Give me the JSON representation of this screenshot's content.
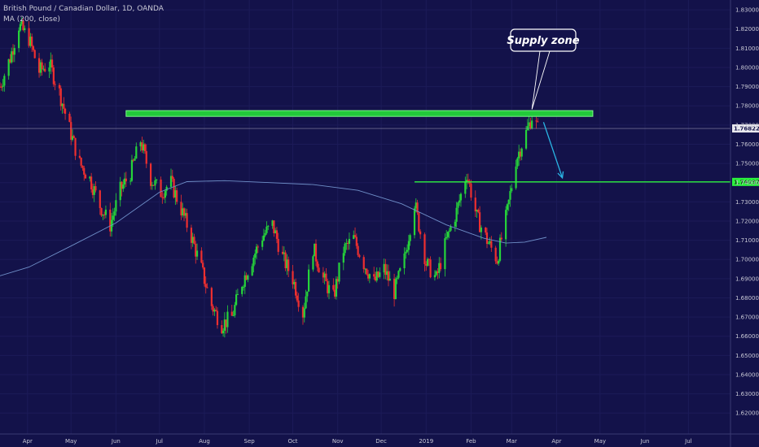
{
  "legend": {
    "symbol_line": "British Pound / Canadian Dollar, 1D, OANDA",
    "ma_line": "MA (200, close)"
  },
  "annotation": {
    "label": "Supply zone"
  },
  "colors": {
    "background": "#13124a",
    "up": "#26d43a",
    "down": "#ef2f2f",
    "ma": "#6f8fc8",
    "zone_fill": "#22c93a",
    "zone_border": "#7dfc8a",
    "support": "#2cf23e",
    "arrow": "#2ab7e6",
    "axis_text": "#c9c9d6"
  },
  "chart_data": {
    "type": "candlestick",
    "instrument": "British Pound / Canadian Dollar",
    "timeframe": "1D",
    "source": "OANDA",
    "y_axis": {
      "ylim": [
        1.615,
        1.833
      ],
      "ticks": [
        "1.62000",
        "1.63000",
        "1.64000",
        "1.65000",
        "1.66000",
        "1.67000",
        "1.68000",
        "1.69000",
        "1.70000",
        "1.71000",
        "1.72000",
        "1.73000",
        "1.74000",
        "1.75000",
        "1.76000",
        "1.77000",
        "1.78000",
        "1.79000",
        "1.80000",
        "1.81000",
        "1.82000",
        "1.83000"
      ]
    },
    "x_axis": {
      "labels": [
        "Apr",
        "May",
        "Jun",
        "Jul",
        "Aug",
        "Sep",
        "Oct",
        "Nov",
        "Dec",
        "2019",
        "Feb",
        "Mar",
        "Apr",
        "May",
        "Jun",
        "Jul"
      ],
      "label_dates": [
        "2018-04-01",
        "2018-05-01",
        "2018-06-01",
        "2018-07-01",
        "2018-08-01",
        "2018-09-01",
        "2018-10-01",
        "2018-11-01",
        "2018-12-01",
        "2019-01-01",
        "2019-02-01",
        "2019-03-01",
        "2019-04-01",
        "2019-05-01",
        "2019-06-01",
        "2019-07-01"
      ],
      "range": [
        "2018-03-13",
        "2019-07-30"
      ]
    },
    "last_price": "1.76822",
    "support_level": "1.74037",
    "supply_zone": {
      "low": 1.7745,
      "high": 1.7775,
      "from": "2018-06-08",
      "to": "2019-04-26"
    },
    "projection_arrow": {
      "from": {
        "date": "2019-03-23",
        "price": 1.7715
      },
      "to": {
        "date": "2019-04-05",
        "price": 1.7425
      }
    },
    "price_path": [
      {
        "date": "2018-03-13",
        "price": 1.79
      },
      {
        "date": "2018-03-20",
        "price": 1.805
      },
      {
        "date": "2018-03-26",
        "price": 1.822
      },
      {
        "date": "2018-04-02",
        "price": 1.815
      },
      {
        "date": "2018-04-09",
        "price": 1.798
      },
      {
        "date": "2018-04-16",
        "price": 1.802
      },
      {
        "date": "2018-04-23",
        "price": 1.787
      },
      {
        "date": "2018-04-30",
        "price": 1.768
      },
      {
        "date": "2018-05-07",
        "price": 1.75
      },
      {
        "date": "2018-05-14",
        "price": 1.742
      },
      {
        "date": "2018-05-21",
        "price": 1.728
      },
      {
        "date": "2018-05-28",
        "price": 1.718
      },
      {
        "date": "2018-06-04",
        "price": 1.736
      },
      {
        "date": "2018-06-11",
        "price": 1.745
      },
      {
        "date": "2018-06-18",
        "price": 1.762
      },
      {
        "date": "2018-06-25",
        "price": 1.742
      },
      {
        "date": "2018-07-02",
        "price": 1.735
      },
      {
        "date": "2018-07-09",
        "price": 1.74
      },
      {
        "date": "2018-07-16",
        "price": 1.726
      },
      {
        "date": "2018-07-23",
        "price": 1.712
      },
      {
        "date": "2018-07-30",
        "price": 1.695
      },
      {
        "date": "2018-08-06",
        "price": 1.676
      },
      {
        "date": "2018-08-13",
        "price": 1.666
      },
      {
        "date": "2018-08-20",
        "price": 1.67
      },
      {
        "date": "2018-08-27",
        "price": 1.688
      },
      {
        "date": "2018-09-03",
        "price": 1.7
      },
      {
        "date": "2018-09-10",
        "price": 1.712
      },
      {
        "date": "2018-09-17",
        "price": 1.718
      },
      {
        "date": "2018-09-24",
        "price": 1.701
      },
      {
        "date": "2018-10-01",
        "price": 1.69
      },
      {
        "date": "2018-10-08",
        "price": 1.672
      },
      {
        "date": "2018-10-15",
        "price": 1.706
      },
      {
        "date": "2018-10-22",
        "price": 1.69
      },
      {
        "date": "2018-10-29",
        "price": 1.68
      },
      {
        "date": "2018-11-05",
        "price": 1.705
      },
      {
        "date": "2018-11-12",
        "price": 1.711
      },
      {
        "date": "2018-11-19",
        "price": 1.698
      },
      {
        "date": "2018-11-26",
        "price": 1.688
      },
      {
        "date": "2018-12-03",
        "price": 1.695
      },
      {
        "date": "2018-12-10",
        "price": 1.683
      },
      {
        "date": "2018-12-17",
        "price": 1.7
      },
      {
        "date": "2018-12-24",
        "price": 1.73
      },
      {
        "date": "2019-01-01",
        "price": 1.698
      },
      {
        "date": "2019-01-08",
        "price": 1.69
      },
      {
        "date": "2019-01-15",
        "price": 1.71
      },
      {
        "date": "2019-01-22",
        "price": 1.725
      },
      {
        "date": "2019-01-29",
        "price": 1.745
      },
      {
        "date": "2019-02-05",
        "price": 1.722
      },
      {
        "date": "2019-02-12",
        "price": 1.71
      },
      {
        "date": "2019-02-19",
        "price": 1.7
      },
      {
        "date": "2019-02-26",
        "price": 1.725
      },
      {
        "date": "2019-03-04",
        "price": 1.752
      },
      {
        "date": "2019-03-11",
        "price": 1.766
      },
      {
        "date": "2019-03-15",
        "price": 1.7745
      },
      {
        "date": "2019-03-19",
        "price": 1.7682
      }
    ],
    "ma_path": [
      {
        "date": "2018-03-13",
        "price": 1.6915
      },
      {
        "date": "2018-04-02",
        "price": 1.696
      },
      {
        "date": "2018-05-01",
        "price": 1.707
      },
      {
        "date": "2018-06-01",
        "price": 1.719
      },
      {
        "date": "2018-07-01",
        "price": 1.735
      },
      {
        "date": "2018-07-20",
        "price": 1.7405
      },
      {
        "date": "2018-08-15",
        "price": 1.741
      },
      {
        "date": "2018-09-15",
        "price": 1.74
      },
      {
        "date": "2018-10-15",
        "price": 1.739
      },
      {
        "date": "2018-11-15",
        "price": 1.736
      },
      {
        "date": "2018-12-15",
        "price": 1.729
      },
      {
        "date": "2019-01-15",
        "price": 1.718
      },
      {
        "date": "2019-02-10",
        "price": 1.711
      },
      {
        "date": "2019-02-25",
        "price": 1.7085
      },
      {
        "date": "2019-03-10",
        "price": 1.709
      },
      {
        "date": "2019-03-25",
        "price": 1.7115
      }
    ]
  }
}
